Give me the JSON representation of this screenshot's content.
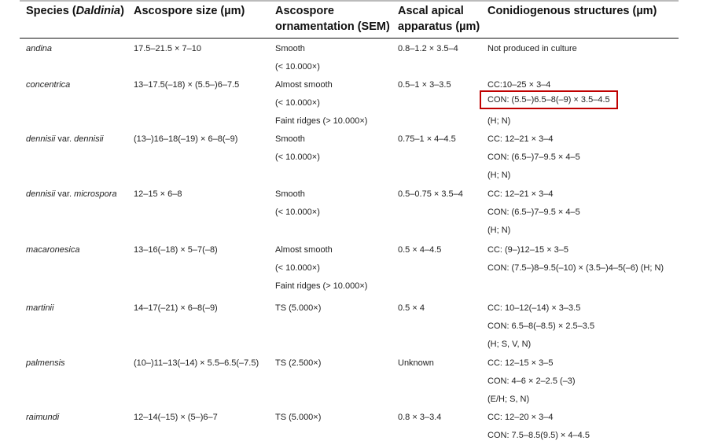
{
  "headers": {
    "species_prefix": "Species (",
    "species_genus": "Daldinia",
    "species_suffix": ")",
    "ascospore_size": "Ascospore size (µm)",
    "ornamentation_line1": "Ascospore",
    "ornamentation_line2": "ornamentation (SEM)",
    "apical_line1": "Ascal apical",
    "apical_line2": "apparatus (µm)",
    "conidiogenous": "Conidiogenous structures (µm)"
  },
  "highlight_color": "#c00000",
  "rows": [
    {
      "species": [
        {
          "t": "andina",
          "i": true
        }
      ],
      "size": [
        "17.5–21.5 × 7–10"
      ],
      "orn": [
        "Smooth",
        "(< 10.000×)"
      ],
      "apical": [
        "0.8–1.2 × 3.5–4"
      ],
      "con": [
        "Not produced in culture"
      ]
    },
    {
      "species": [
        {
          "t": "concentrica",
          "i": true
        }
      ],
      "size": [
        "13–17.5(–18) × (5.5–)6–7.5"
      ],
      "orn": [
        "Almost smooth",
        "(< 10.000×)",
        "Faint ridges (> 10.000×)"
      ],
      "apical": [
        "0.5–1 × 3–3.5"
      ],
      "con": [
        "CC:10–25 × 3–4",
        "CON: (5.5–)6.5–8(–9) × 3.5–4.5",
        "(H; N)"
      ],
      "highlight_line": 1
    },
    {
      "species": [
        {
          "t": "dennisii",
          "i": true
        },
        {
          "t": " var. ",
          "i": false
        },
        {
          "t": "dennisii",
          "i": true
        }
      ],
      "size": [
        "(13–)16–18(–19) × 6–8(–9)"
      ],
      "orn": [
        "Smooth",
        "(< 10.000×)"
      ],
      "apical": [
        "0.75–1 × 4–4.5"
      ],
      "con": [
        "CC: 12–21 × 3–4",
        "CON: (6.5–)7–9.5 × 4–5",
        "(H; N)"
      ]
    },
    {
      "species": [
        {
          "t": "dennisii",
          "i": true
        },
        {
          "t": " var. ",
          "i": false
        },
        {
          "t": "microspora",
          "i": true
        }
      ],
      "size": [
        "12–15 × 6–8"
      ],
      "orn": [
        "Smooth",
        "(< 10.000×)"
      ],
      "apical": [
        "0.5–0.75 × 3.5–4"
      ],
      "con": [
        "CC: 12–21 × 3–4",
        "CON: (6.5–)7–9.5 × 4–5",
        "(H; N)"
      ]
    },
    {
      "species": [
        {
          "t": "macaronesica",
          "i": true
        }
      ],
      "size": [
        "13–16(–18) × 5–7(–8)"
      ],
      "orn": [
        "Almost smooth",
        "(< 10.000×)",
        "Faint ridges (> 10.000×)"
      ],
      "apical": [
        "0.5 × 4–4.5"
      ],
      "con": [
        "CC: (9–)12–15 × 3–5",
        "CON: (7.5–)8–9.5(–10) × (3.5–)4–5(–6) (H; N)"
      ]
    },
    {
      "species": [
        {
          "t": "martinii",
          "i": true
        }
      ],
      "size": [
        "14–17(–21) × 6–8(–9)"
      ],
      "orn": [
        "TS (5.000×)"
      ],
      "apical": [
        "0.5 × 4"
      ],
      "con": [
        "CC: 10–12(–14) × 3–3.5",
        "CON: 6.5–8(–8.5) × 2.5–3.5",
        "(H; S, V, N)"
      ]
    },
    {
      "species": [
        {
          "t": "palmensis",
          "i": true
        }
      ],
      "size": [
        "(10–)11–13(–14) × 5.5–6.5(–7.5)"
      ],
      "orn": [
        "TS (2.500×)"
      ],
      "apical": [
        "Unknown"
      ],
      "con": [
        "CC: 12–15 × 3–5",
        "CON: 4–6 × 2–2.5 (–3)",
        "(E/H; S, N)"
      ]
    },
    {
      "species": [
        {
          "t": "raimundi",
          "i": true
        }
      ],
      "size": [
        "12–14(–15) × (5–)6–7"
      ],
      "orn": [
        "TS (5.000×)"
      ],
      "apical": [
        "0.8 × 3–3.4"
      ],
      "con": [
        "CC: 12–20 × 3–4",
        "CON: 7.5–8.5(9.5) × 4–4.5"
      ]
    }
  ]
}
